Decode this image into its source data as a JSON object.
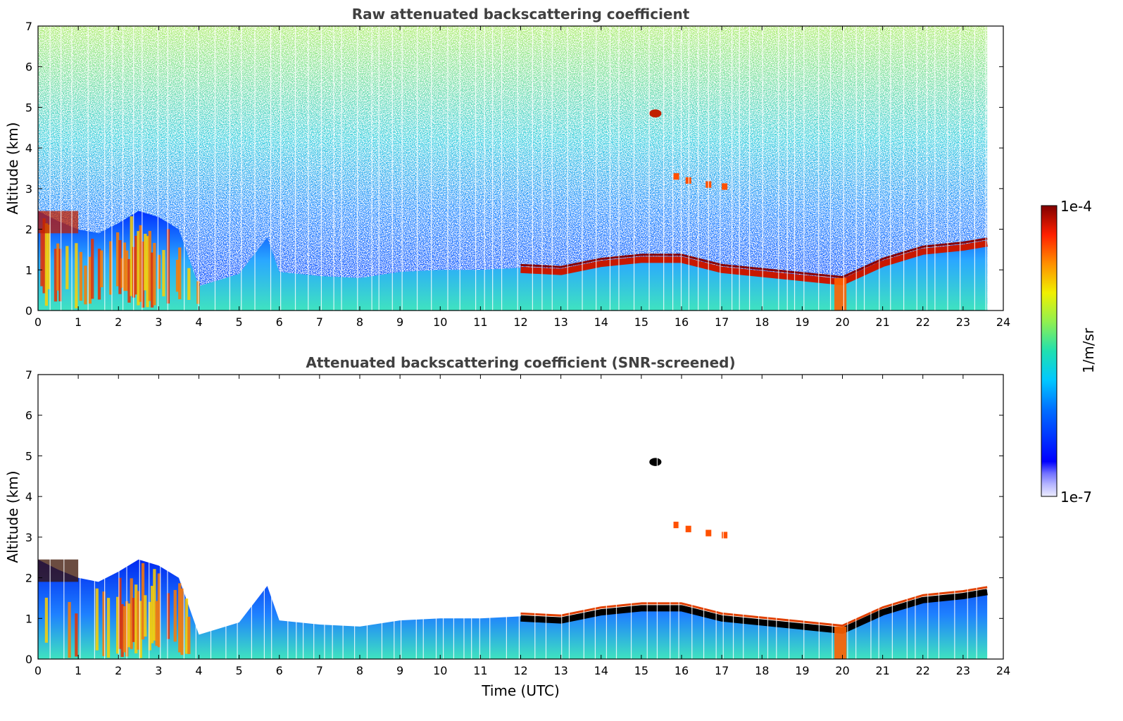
{
  "chart_data": [
    {
      "type": "heatmap",
      "title": "Raw attenuated backscattering coefficient",
      "xlabel": "",
      "ylabel": "Altitude (km)",
      "xlim": [
        0,
        24
      ],
      "ylim": [
        0,
        7
      ],
      "x_ticks": [
        0,
        1,
        2,
        3,
        4,
        5,
        6,
        7,
        8,
        9,
        10,
        11,
        12,
        13,
        14,
        15,
        16,
        17,
        18,
        19,
        20,
        21,
        22,
        23,
        24
      ],
      "y_ticks": [
        0,
        1,
        2,
        3,
        4,
        5,
        6,
        7
      ],
      "data_end_time": 23.6,
      "noise": "speckled background increasing with altitude",
      "boundary_layer_top": [
        [
          0,
          2.45
        ],
        [
          0.5,
          2.2
        ],
        [
          1,
          2.0
        ],
        [
          1.5,
          1.9
        ],
        [
          2,
          2.15
        ],
        [
          2.5,
          2.45
        ],
        [
          3,
          2.3
        ],
        [
          3.5,
          2.0
        ],
        [
          4,
          0.6
        ],
        [
          5,
          0.9
        ],
        [
          5.7,
          1.8
        ],
        [
          6,
          0.95
        ],
        [
          7,
          0.85
        ],
        [
          8,
          0.8
        ],
        [
          9,
          0.95
        ],
        [
          10,
          1.0
        ],
        [
          11,
          1.0
        ],
        [
          12,
          1.05
        ],
        [
          13,
          1.0
        ],
        [
          14,
          1.2
        ],
        [
          15,
          1.3
        ],
        [
          16,
          1.3
        ],
        [
          17,
          1.05
        ],
        [
          18,
          0.95
        ],
        [
          19,
          0.85
        ],
        [
          20,
          0.75
        ],
        [
          21,
          1.2
        ],
        [
          22,
          1.5
        ],
        [
          23,
          1.6
        ],
        [
          23.6,
          1.7
        ]
      ],
      "features": [
        {
          "kind": "aerosol layer",
          "x": [
            0,
            4
          ],
          "y": [
            0,
            2.5
          ]
        },
        {
          "kind": "cloud layer",
          "x": [
            12,
            23.6
          ],
          "y": [
            0.7,
            1.7
          ]
        },
        {
          "kind": "cloud",
          "x": [
            15.2,
            15.5
          ],
          "y": [
            4.75,
            4.95
          ]
        },
        {
          "kind": "cloud fragments",
          "x": [
            15.8,
            17.0
          ],
          "y": [
            3.0,
            3.35
          ]
        },
        {
          "kind": "precipitation/fog",
          "x": [
            19.8,
            20.1
          ],
          "y": [
            0,
            0.8
          ]
        }
      ]
    },
    {
      "type": "heatmap",
      "title": "Attenuated backscattering coefficient (SNR-screened)",
      "xlabel": "Time (UTC)",
      "ylabel": "Altitude (km)",
      "xlim": [
        0,
        24
      ],
      "ylim": [
        0,
        7
      ],
      "x_ticks": [
        0,
        1,
        2,
        3,
        4,
        5,
        6,
        7,
        8,
        9,
        10,
        11,
        12,
        13,
        14,
        15,
        16,
        17,
        18,
        19,
        20,
        21,
        22,
        23,
        24
      ],
      "y_ticks": [
        0,
        1,
        2,
        3,
        4,
        5,
        6,
        7
      ],
      "data_end_time": 23.6,
      "noise": "screened out (white)",
      "boundary_layer_top": [
        [
          0,
          2.45
        ],
        [
          0.5,
          2.2
        ],
        [
          1,
          2.0
        ],
        [
          1.5,
          1.9
        ],
        [
          2,
          2.15
        ],
        [
          2.5,
          2.45
        ],
        [
          3,
          2.3
        ],
        [
          3.5,
          2.0
        ],
        [
          4,
          0.6
        ],
        [
          5,
          0.9
        ],
        [
          5.7,
          1.8
        ],
        [
          6,
          0.95
        ],
        [
          7,
          0.85
        ],
        [
          8,
          0.8
        ],
        [
          9,
          0.95
        ],
        [
          10,
          1.0
        ],
        [
          11,
          1.0
        ],
        [
          12,
          1.05
        ],
        [
          13,
          1.0
        ],
        [
          14,
          1.2
        ],
        [
          15,
          1.3
        ],
        [
          16,
          1.3
        ],
        [
          17,
          1.05
        ],
        [
          18,
          0.95
        ],
        [
          19,
          0.85
        ],
        [
          20,
          0.75
        ],
        [
          21,
          1.2
        ],
        [
          22,
          1.5
        ],
        [
          23,
          1.6
        ],
        [
          23.6,
          1.7
        ]
      ],
      "features": [
        {
          "kind": "aerosol layer",
          "x": [
            0,
            4
          ],
          "y": [
            0,
            2.5
          ]
        },
        {
          "kind": "cloud layer (saturated, black)",
          "x": [
            12,
            23.6
          ],
          "y": [
            0.7,
            1.7
          ]
        },
        {
          "kind": "cloud (saturated, black)",
          "x": [
            15.2,
            15.5
          ],
          "y": [
            4.75,
            4.95
          ]
        },
        {
          "kind": "cloud fragments",
          "x": [
            15.8,
            17.0
          ],
          "y": [
            3.0,
            3.35
          ]
        },
        {
          "kind": "precipitation/fog",
          "x": [
            19.8,
            20.1
          ],
          "y": [
            0,
            0.8
          ]
        }
      ]
    }
  ],
  "colorbar": {
    "label": "1/m/sr",
    "max_label": "1e-4",
    "min_label": "1e-7",
    "scale": "log",
    "range": [
      1e-07,
      0.0001
    ],
    "colormap": "jet"
  },
  "colors": {
    "axis": "#000000",
    "title": "#404040",
    "saturated": "#000000"
  }
}
